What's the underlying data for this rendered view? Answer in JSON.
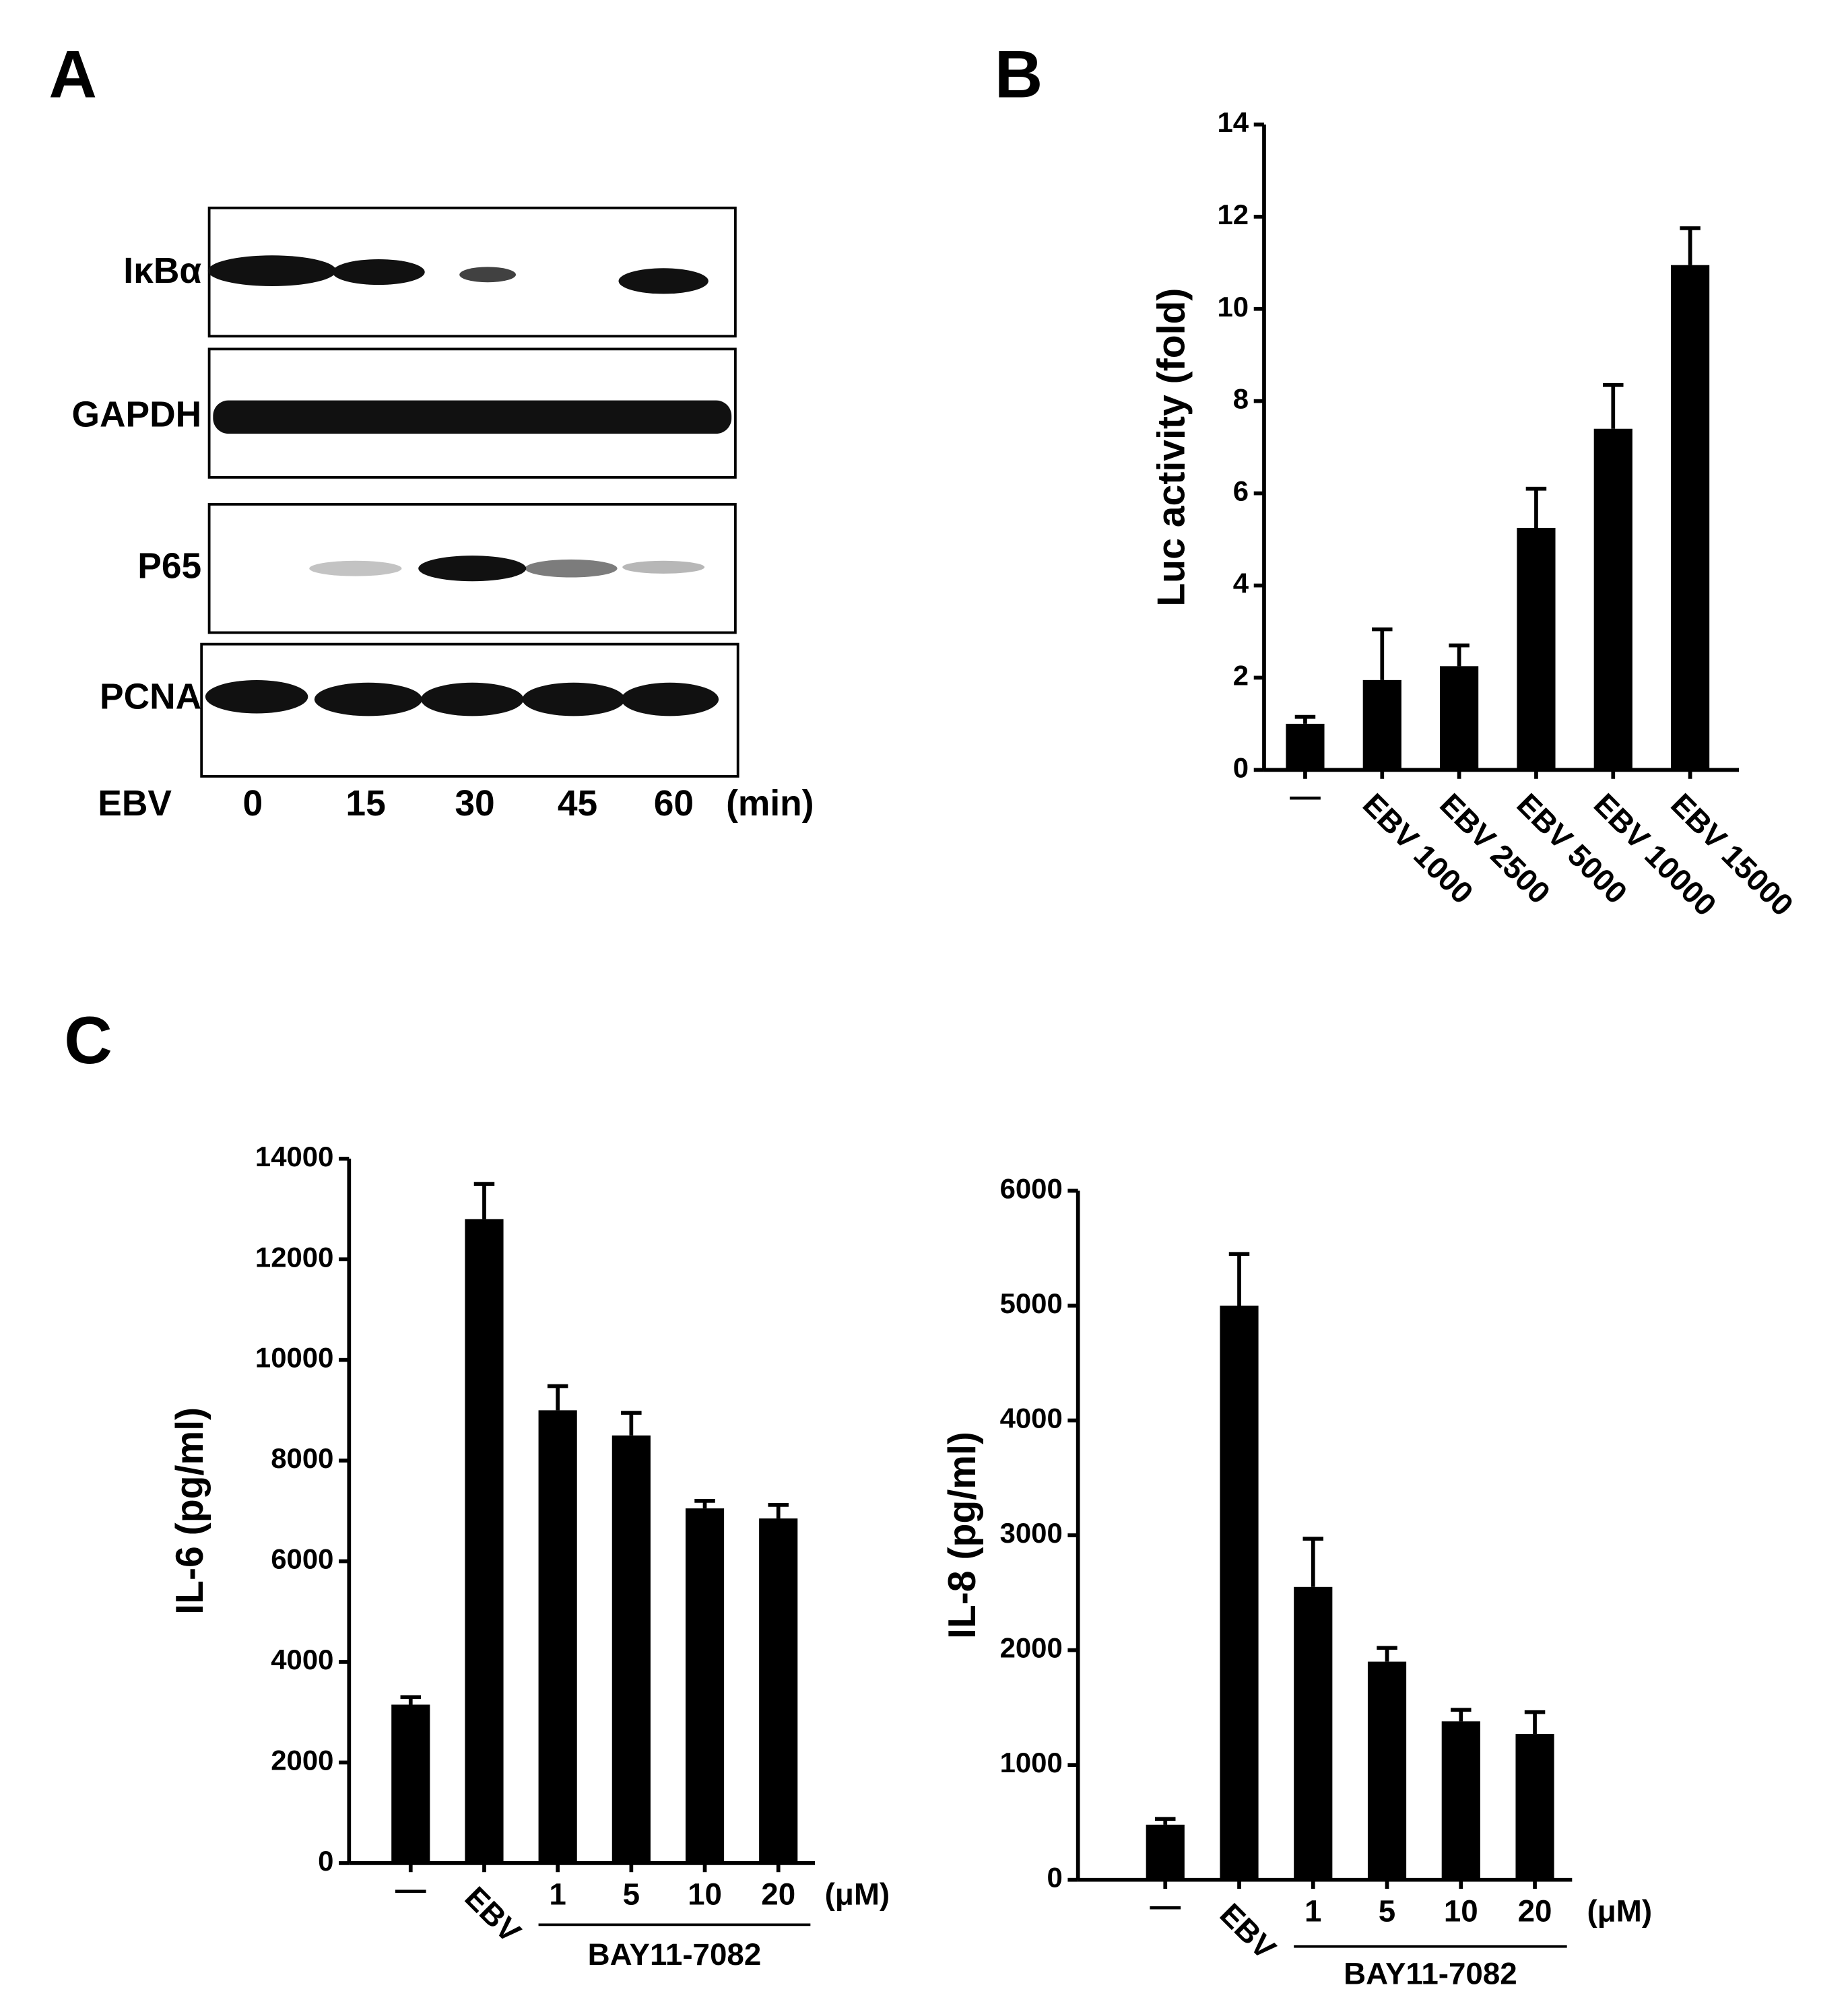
{
  "chart_data": [
    {
      "type": "blot",
      "panel": "A",
      "rows": [
        "IκBα",
        "GAPDH",
        "P65",
        "PCNA"
      ],
      "treatment": "EBV",
      "x": [
        0,
        15,
        30,
        45,
        60
      ],
      "unit": "(min)"
    },
    {
      "type": "bar",
      "panel": "B",
      "ylabel": "Luc activity (fold)",
      "categories": [
        "—",
        "EBV 1000",
        "EBV 2500",
        "EBV 5000",
        "EBV 10000",
        "EBV 15000"
      ],
      "values": [
        1.0,
        1.95,
        2.25,
        5.25,
        7.4,
        10.95
      ],
      "errors": [
        0.15,
        1.1,
        0.45,
        0.85,
        0.95,
        0.8
      ],
      "color": "#000000",
      "ylim": [
        0,
        14
      ],
      "yticks": [
        0,
        2,
        4,
        6,
        8,
        10,
        12,
        14
      ]
    },
    {
      "type": "bar",
      "panel": "C",
      "ylabel": "IL-6 (pg/ml)",
      "categories": [
        "—",
        "EBV",
        "1",
        "5",
        "10",
        "20"
      ],
      "x_unit": "(μM)",
      "group_label": "BAY11-7082",
      "values": [
        3150,
        12800,
        9000,
        8500,
        7050,
        6850
      ],
      "errors": [
        150,
        700,
        480,
        450,
        150,
        270
      ],
      "color": "#000000",
      "ylim": [
        0,
        14000
      ],
      "yticks": [
        0,
        2000,
        4000,
        6000,
        8000,
        10000,
        12000,
        14000
      ]
    },
    {
      "type": "bar",
      "ylabel": "IL-8 (pg/ml)",
      "categories": [
        "—",
        "EBV",
        "1",
        "5",
        "10",
        "20"
      ],
      "x_unit": "(μM)",
      "group_label": "BAY11-7082",
      "values": [
        480,
        5000,
        2550,
        1900,
        1380,
        1270
      ],
      "errors": [
        50,
        450,
        420,
        120,
        100,
        190
      ],
      "color": "#000000",
      "ylim": [
        0,
        6000
      ],
      "yticks": [
        0,
        1000,
        2000,
        3000,
        4000,
        5000,
        6000
      ]
    }
  ]
}
